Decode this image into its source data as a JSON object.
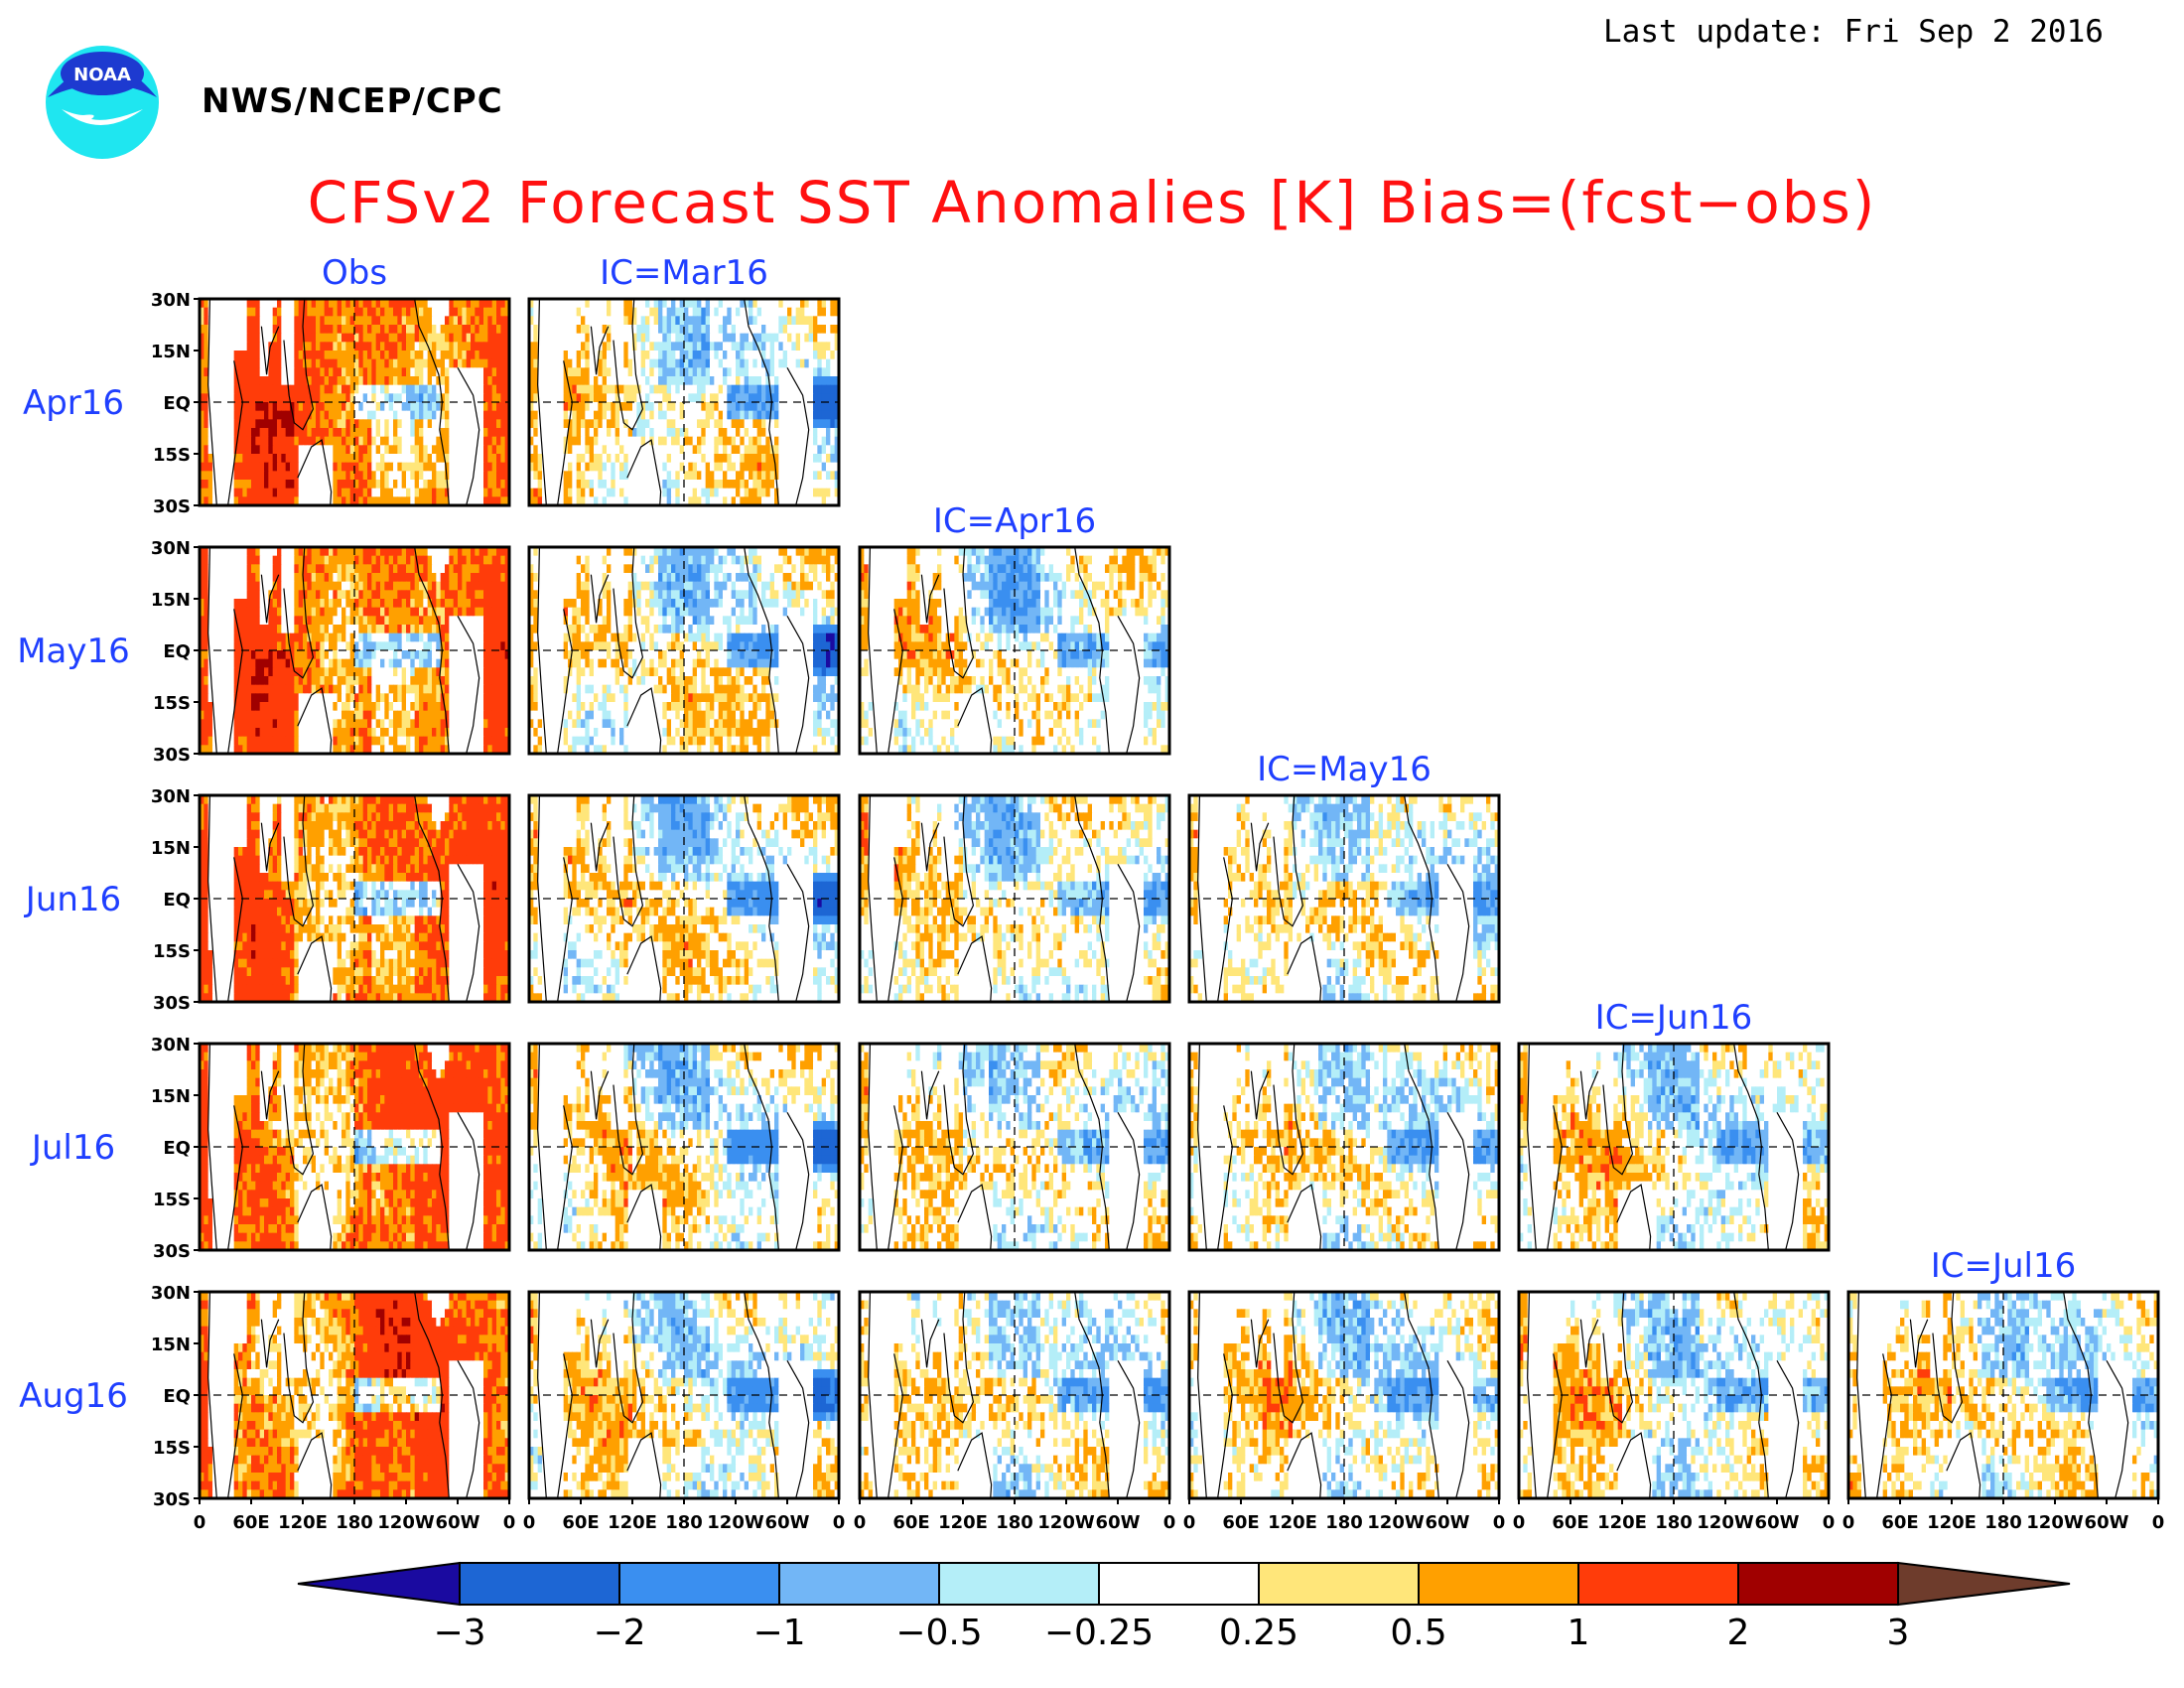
{
  "header": {
    "last_update": "Last update: Fri Sep  2 2016",
    "agency": "NWS/NCEP/CPC",
    "logo_text": "NOAA",
    "title": "CFSv2 Forecast SST Anomalies [K] Bias=(fcst−obs)"
  },
  "colors": {
    "title": "#ff1010",
    "panel_labels": "#1f3fff",
    "colorbar": [
      "#1a0aa0",
      "#1d66d4",
      "#3a8ff0",
      "#72b6f6",
      "#b4eef8",
      "#ffffff",
      "#ffe67a",
      "#ffa000",
      "#ff3c0a",
      "#a00000",
      "#6e3c2c"
    ]
  },
  "chart_data": {
    "type": "heatmap",
    "title": "CFSv2 Forecast SST Anomalies [K] Bias=(fcst−obs)",
    "row_labels": [
      "Apr16",
      "May16",
      "Jun16",
      "Jul16",
      "Aug16"
    ],
    "column_headers": [
      "Obs",
      "IC=Mar16",
      "IC=Apr16",
      "IC=May16",
      "IC=Jun16",
      "IC=Jul16"
    ],
    "ytick_labels": [
      "30N",
      "15N",
      "EQ",
      "15S",
      "30S"
    ],
    "xtick_labels": [
      "0",
      "60E",
      "120E",
      "180",
      "120W",
      "60W",
      "0"
    ],
    "lon_range": [
      0,
      360
    ],
    "lat_range": [
      -30,
      30
    ],
    "colorbar_levels": [
      "−3",
      "−2",
      "−1",
      "−0.5",
      "−0.25",
      "0.25",
      "0.5",
      "1",
      "2",
      "3"
    ],
    "panels_per_row": [
      2,
      3,
      4,
      5,
      6
    ]
  }
}
